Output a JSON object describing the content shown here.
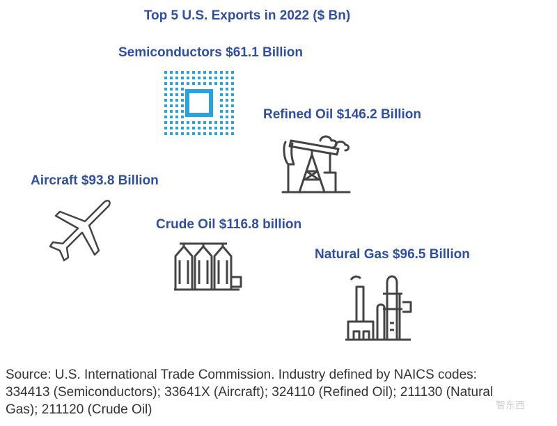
{
  "chart_data": {
    "type": "infographic",
    "title": "Top 5 U.S. Exports in 2022 ($ Bn)",
    "unit": "$ Bn",
    "items": [
      {
        "id": "semiconductors",
        "label": "Semiconductors $61.1 Billion",
        "name": "Semiconductors",
        "value": 61.1,
        "icon": "chip-icon"
      },
      {
        "id": "refined_oil",
        "label": "Refined Oil $146.2 Billion",
        "name": "Refined Oil",
        "value": 146.2,
        "icon": "pumpjack-icon"
      },
      {
        "id": "aircraft",
        "label": "Aircraft $93.8 Billion",
        "name": "Aircraft",
        "value": 93.8,
        "icon": "airplane-icon"
      },
      {
        "id": "crude_oil",
        "label": "Crude Oil $116.8 billion",
        "name": "Crude Oil",
        "value": 116.8,
        "icon": "storage-tanks-icon"
      },
      {
        "id": "natural_gas",
        "label": "Natural Gas $96.5 Billion",
        "name": "Natural Gas",
        "value": 96.5,
        "icon": "gas-plant-icon"
      }
    ]
  },
  "source": {
    "line1": "Source: U.S. International Trade Commission. Industry defined by NAICS codes:",
    "line2": "334413 (Semiconductors); 33641X (Aircraft); 324110 (Refined Oil); 211130 (Natural",
    "line3": "Gas); 211120 (Crude Oil)"
  },
  "watermark": "智东西",
  "colors": {
    "label": "#2E4FA3",
    "chip": "#29A3DD",
    "icon_stroke": "#444444"
  }
}
